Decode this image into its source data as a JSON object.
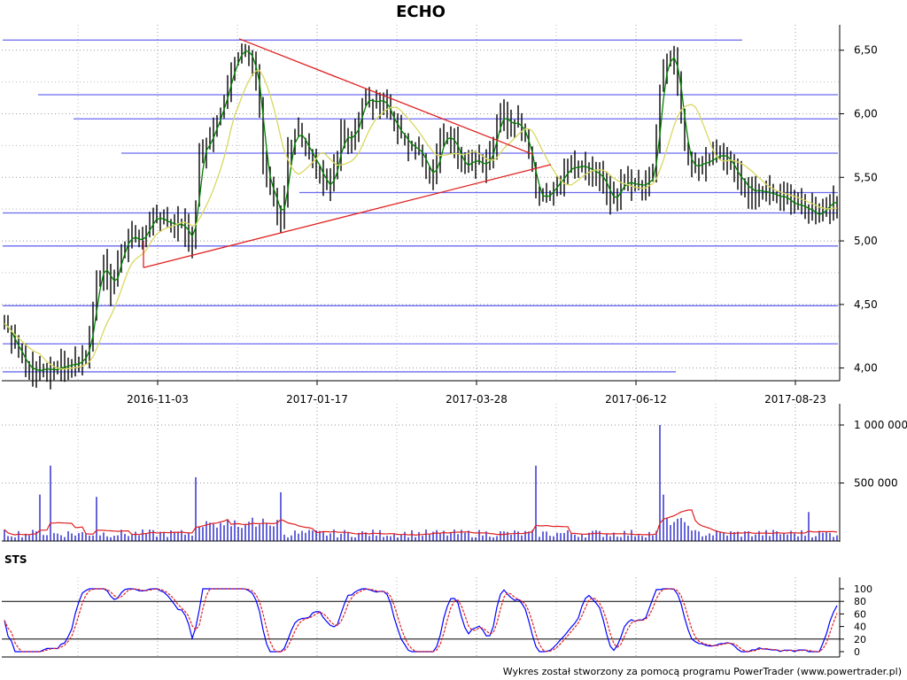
{
  "chart_data": [
    {
      "type": "candlestick",
      "title": "ECHO",
      "x_ticks": [
        "2016-11-03",
        "2017-01-17",
        "2017-03-28",
        "2017-06-12",
        "2017-08-23"
      ],
      "y_ticks": [
        "4,00",
        "4,50",
        "5,00",
        "5,50",
        "6,00",
        "6,50"
      ],
      "ylim": [
        3.9,
        6.7
      ],
      "grid": true,
      "support_resistance_levels": [
        6.58,
        6.15,
        5.96,
        5.69,
        5.38,
        5.22,
        4.96,
        4.49,
        4.19,
        3.97
      ],
      "colors": {
        "price_bars": "#000000",
        "ma_short": "#008000",
        "ma_long": "#d8d860",
        "levels": "#6a6af0",
        "trendlines": "#e02020"
      }
    },
    {
      "type": "bar",
      "name": "volume",
      "y_ticks": [
        "500 000",
        "1 000 000"
      ],
      "ylim": [
        0,
        1000000
      ],
      "colors": {
        "bars": "#0000c0",
        "average": "#e02020"
      }
    },
    {
      "type": "line",
      "title": "STS",
      "y_ticks": [
        "0",
        "20",
        "40",
        "60",
        "80",
        "100"
      ],
      "ylim": [
        0,
        100
      ],
      "reference_levels": [
        20,
        80
      ],
      "colors": {
        "k": "#0000ff",
        "d": "#e02020"
      }
    }
  ],
  "footer": "Wykres został stworzony za pomocą programu PowerTrader (www.powertrader.pl)"
}
